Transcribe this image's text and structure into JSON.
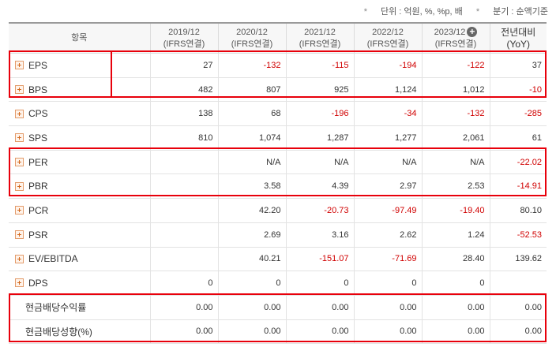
{
  "notes": {
    "unit": "단위 : 억원, %, %p, 배",
    "period": "분기 : 순액기준"
  },
  "header": {
    "item_label": "항목",
    "columns": [
      {
        "year": "2019/12",
        "basis": "(IFRS연결)"
      },
      {
        "year": "2020/12",
        "basis": "(IFRS연결)"
      },
      {
        "year": "2021/12",
        "basis": "(IFRS연결)"
      },
      {
        "year": "2022/12",
        "basis": "(IFRS연결)"
      },
      {
        "year": "2023/12",
        "basis": "(IFRS연결)"
      }
    ],
    "yoy_line1": "전년대비",
    "yoy_line2": "(YoY)",
    "expand_glyph": "+"
  },
  "rows": [
    {
      "label": "EPS",
      "expand": true,
      "values": [
        "27",
        "-132",
        "-115",
        "-194",
        "-122",
        "37"
      ]
    },
    {
      "label": "BPS",
      "expand": true,
      "values": [
        "482",
        "807",
        "925",
        "1,124",
        "1,012",
        "-10"
      ]
    },
    {
      "label": "CPS",
      "expand": true,
      "values": [
        "138",
        "68",
        "-196",
        "-34",
        "-132",
        "-285"
      ]
    },
    {
      "label": "SPS",
      "expand": true,
      "values": [
        "810",
        "1,074",
        "1,287",
        "1,277",
        "2,061",
        "61"
      ]
    },
    {
      "label": "PER",
      "expand": true,
      "values": [
        "",
        "N/A",
        "N/A",
        "N/A",
        "N/A",
        "-22.02"
      ]
    },
    {
      "label": "PBR",
      "expand": true,
      "values": [
        "",
        "3.58",
        "4.39",
        "2.97",
        "2.53",
        "-14.91"
      ]
    },
    {
      "label": "PCR",
      "expand": true,
      "values": [
        "",
        "42.20",
        "-20.73",
        "-97.49",
        "-19.40",
        "80.10"
      ]
    },
    {
      "label": "PSR",
      "expand": true,
      "values": [
        "",
        "2.69",
        "3.16",
        "2.62",
        "1.24",
        "-52.53"
      ]
    },
    {
      "label": "EV/EBITDA",
      "expand": true,
      "values": [
        "",
        "40.21",
        "-151.07",
        "-71.69",
        "28.40",
        "139.62"
      ]
    },
    {
      "label": "DPS",
      "expand": true,
      "values": [
        "0",
        "0",
        "0",
        "0",
        "0",
        ""
      ]
    },
    {
      "label": "현금배당수익률",
      "expand": false,
      "values": [
        "0.00",
        "0.00",
        "0.00",
        "0.00",
        "0.00",
        "0.00"
      ]
    },
    {
      "label": "현금배당성향(%)",
      "expand": false,
      "values": [
        "0.00",
        "0.00",
        "0.00",
        "0.00",
        "0.00",
        "0.00"
      ]
    }
  ],
  "colors": {
    "negative": "#d00000",
    "highlight_border": "#e8000b",
    "expand_icon": "#e39b6a"
  },
  "icons": {
    "row_expand": "plus-box-icon",
    "header_expand": "plus-circle-icon"
  }
}
